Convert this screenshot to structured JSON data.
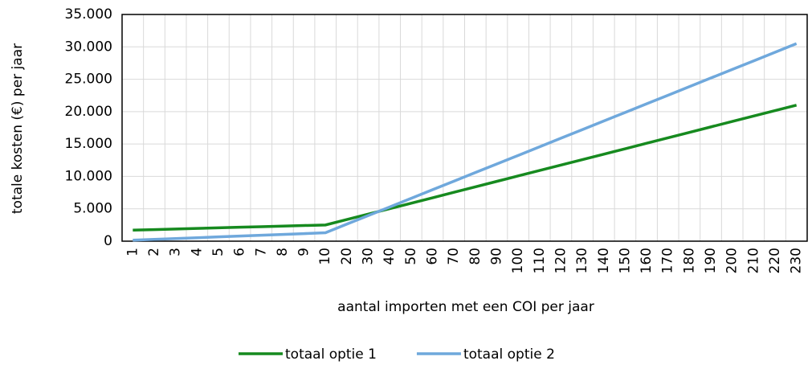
{
  "chart_data": {
    "type": "line",
    "x_label": "aantal importen met een COI per jaar",
    "y_label": "totale kosten (€) per jaar",
    "categories": [
      "1",
      "2",
      "3",
      "4",
      "5",
      "6",
      "7",
      "8",
      "9",
      "10",
      "20",
      "30",
      "40",
      "50",
      "60",
      "70",
      "80",
      "90",
      "100",
      "110",
      "120",
      "130",
      "140",
      "150",
      "160",
      "170",
      "180",
      "190",
      "200",
      "210",
      "220",
      "230"
    ],
    "series": [
      {
        "name": "totaal optie 1",
        "color": "#168a1f",
        "values": [
          1700,
          1790,
          1880,
          1970,
          2060,
          2150,
          2240,
          2330,
          2420,
          2500,
          3340,
          4180,
          5020,
          5860,
          6700,
          7550,
          8390,
          9230,
          10070,
          10910,
          11750,
          12590,
          13430,
          14270,
          15120,
          15960,
          16800,
          17640,
          18480,
          19320,
          20160,
          21000
        ]
      },
      {
        "name": "totaal optie 2",
        "color": "#6fa8dc",
        "values": [
          150,
          280,
          400,
          530,
          660,
          790,
          910,
          1040,
          1170,
          1300,
          2630,
          3950,
          5280,
          6610,
          7940,
          9260,
          10590,
          11920,
          13240,
          14570,
          15900,
          17220,
          18550,
          19880,
          21210,
          22530,
          23860,
          25190,
          26510,
          27840,
          29170,
          30500
        ]
      }
    ],
    "ylim": [
      0,
      35000
    ],
    "yticks": [
      0,
      {
        "value": 5000,
        "label": "5.000"
      },
      {
        "value": 10000,
        "label": "10.000"
      },
      {
        "value": 15000,
        "label": "15.000"
      },
      {
        "value": 20000,
        "label": "20.000"
      },
      {
        "value": 25000,
        "label": "25.000"
      },
      {
        "value": 30000,
        "label": "30.000"
      },
      {
        "value": 35000,
        "label": "35.000"
      }
    ],
    "grid": true,
    "legend": "bottom"
  }
}
